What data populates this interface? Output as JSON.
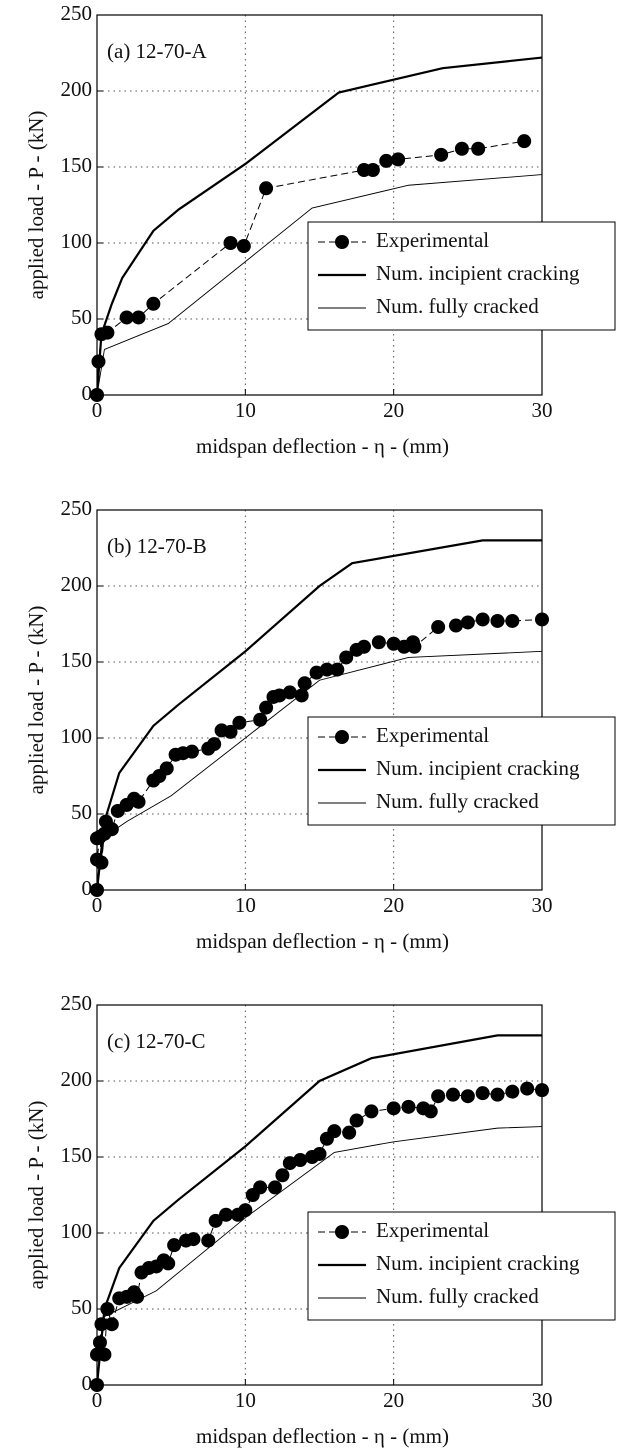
{
  "chart_data": [
    {
      "type": "line",
      "title": "(a) 12-70-A",
      "xlabel": "midspan deflection  - η  - (mm)",
      "ylabel": "applied load - P - (kN)",
      "xlim": [
        0,
        30
      ],
      "ylim": [
        0,
        250
      ],
      "xticks": [
        0,
        10,
        20,
        30
      ],
      "yticks": [
        0,
        50,
        100,
        150,
        200,
        250
      ],
      "grid": true,
      "legend": "right",
      "series": [
        {
          "name": "Experimental",
          "color": "#000000",
          "marker": "circle",
          "dashed": true,
          "width": 1,
          "x": [
            0,
            0.1,
            0.3,
            0.7,
            2,
            2.8,
            3.8,
            9,
            9.9,
            11.4,
            18,
            18.6,
            19.5,
            20.3,
            23.2,
            24.6,
            25.7,
            28.8
          ],
          "values": [
            0,
            22,
            40,
            41,
            51,
            51,
            60,
            100,
            98,
            136,
            148,
            148,
            154,
            155,
            158,
            162,
            162,
            167
          ]
        },
        {
          "name": "Num. incipient cracking",
          "color": "#000000",
          "marker": "none",
          "dashed": false,
          "width": 2.2,
          "x": [
            0,
            0.3,
            1,
            1.7,
            3.8,
            5.5,
            10,
            16.3,
            23.3,
            30
          ],
          "values": [
            0,
            40,
            60,
            77,
            108,
            122,
            152,
            199,
            215,
            222
          ]
        },
        {
          "name": "Num. fully cracked",
          "color": "#000000",
          "marker": "none",
          "dashed": false,
          "width": 0.9,
          "x": [
            0,
            0.5,
            4.8,
            14.5,
            21,
            30
          ],
          "values": [
            0,
            30,
            47,
            123,
            138,
            145
          ]
        }
      ]
    },
    {
      "type": "line",
      "title": "(b) 12-70-B",
      "xlabel": "midspan deflection  - η  - (mm)",
      "ylabel": "applied load - P - (kN)",
      "xlim": [
        0,
        30
      ],
      "ylim": [
        0,
        250
      ],
      "xticks": [
        0,
        10,
        20,
        30
      ],
      "yticks": [
        0,
        50,
        100,
        150,
        200,
        250
      ],
      "grid": true,
      "legend": "right",
      "series": [
        {
          "name": "Experimental",
          "color": "#000000",
          "marker": "circle",
          "dashed": true,
          "width": 1,
          "x": [
            0,
            0,
            0,
            0.2,
            0.3,
            0.5,
            0.6,
            1,
            1.4,
            2,
            2.5,
            2.8,
            3.8,
            4.2,
            4.7,
            5.3,
            5.8,
            6.4,
            7.5,
            7.9,
            8.4,
            9,
            9.6,
            11,
            11.4,
            11.9,
            12.3,
            13,
            13.8,
            14,
            14.8,
            15.5,
            16.2,
            16.8,
            17.5,
            18,
            19,
            20,
            20.7,
            21.3,
            21.4,
            23,
            24.2,
            25,
            26,
            27,
            28,
            30
          ],
          "values": [
            0,
            34,
            20,
            35,
            18,
            37,
            45,
            40,
            52,
            56,
            60,
            58,
            72,
            75,
            80,
            89,
            90,
            91,
            93,
            96,
            105,
            104,
            110,
            112,
            120,
            127,
            128,
            130,
            128,
            136,
            143,
            145,
            145,
            153,
            158,
            160,
            163,
            162,
            160,
            163,
            160,
            173,
            174,
            176,
            178,
            177,
            177,
            178
          ]
        },
        {
          "name": "Num. incipient cracking",
          "color": "#000000",
          "marker": "none",
          "dashed": false,
          "width": 2.2,
          "x": [
            0,
            0.5,
            1.5,
            3.8,
            5.5,
            10,
            15,
            17.2,
            26,
            30
          ],
          "values": [
            0,
            45,
            77,
            108,
            122,
            157,
            200,
            215,
            230,
            230
          ]
        },
        {
          "name": "Num. fully cracked",
          "color": "#000000",
          "marker": "none",
          "dashed": false,
          "width": 0.9,
          "x": [
            0,
            0.5,
            2,
            5,
            10,
            15,
            21,
            30
          ],
          "values": [
            0,
            35,
            45,
            62,
            100,
            138,
            153,
            157
          ]
        }
      ]
    },
    {
      "type": "line",
      "title": "(c) 12-70-C",
      "xlabel": "midspan deflection  - η  - (mm)",
      "ylabel": "applied load - P - (kN)",
      "xlim": [
        0,
        30
      ],
      "ylim": [
        0,
        250
      ],
      "xticks": [
        0,
        10,
        20,
        30
      ],
      "yticks": [
        0,
        50,
        100,
        150,
        200,
        250
      ],
      "grid": true,
      "legend": "right",
      "series": [
        {
          "name": "Experimental",
          "color": "#000000",
          "marker": "circle",
          "dashed": true,
          "width": 1,
          "x": [
            0,
            0,
            0.2,
            0.3,
            0.5,
            0.7,
            1,
            1.5,
            2,
            2.5,
            2.7,
            3,
            3.5,
            4,
            4.5,
            4.8,
            5.2,
            6,
            6.5,
            7.5,
            8,
            8.7,
            9.5,
            10,
            10.5,
            11,
            12,
            12.5,
            13,
            13.7,
            14.5,
            15,
            15.5,
            16,
            17,
            17.5,
            18.5,
            20,
            21,
            22,
            22.5,
            23,
            24,
            25,
            26,
            27,
            28,
            29,
            30
          ],
          "values": [
            0,
            20,
            28,
            40,
            20,
            50,
            40,
            57,
            58,
            61,
            58,
            74,
            77,
            78,
            82,
            80,
            92,
            95,
            96,
            95,
            108,
            112,
            112,
            115,
            125,
            130,
            130,
            138,
            146,
            148,
            150,
            152,
            162,
            167,
            166,
            174,
            180,
            182,
            183,
            182,
            180,
            190,
            191,
            190,
            192,
            191,
            193,
            195,
            194
          ]
        },
        {
          "name": "Num. incipient cracking",
          "color": "#000000",
          "marker": "none",
          "dashed": false,
          "width": 2.2,
          "x": [
            0,
            0.5,
            1.5,
            3.8,
            5.5,
            10,
            15,
            18.5,
            27,
            30
          ],
          "values": [
            0,
            50,
            77,
            108,
            122,
            157,
            200,
            215,
            230,
            230
          ]
        },
        {
          "name": "Num. fully cracked",
          "color": "#000000",
          "marker": "none",
          "dashed": false,
          "width": 0.9,
          "x": [
            0,
            0.5,
            4,
            10,
            16,
            20,
            27,
            30
          ],
          "values": [
            0,
            45,
            62,
            110,
            153,
            160,
            169,
            170
          ]
        }
      ]
    }
  ]
}
